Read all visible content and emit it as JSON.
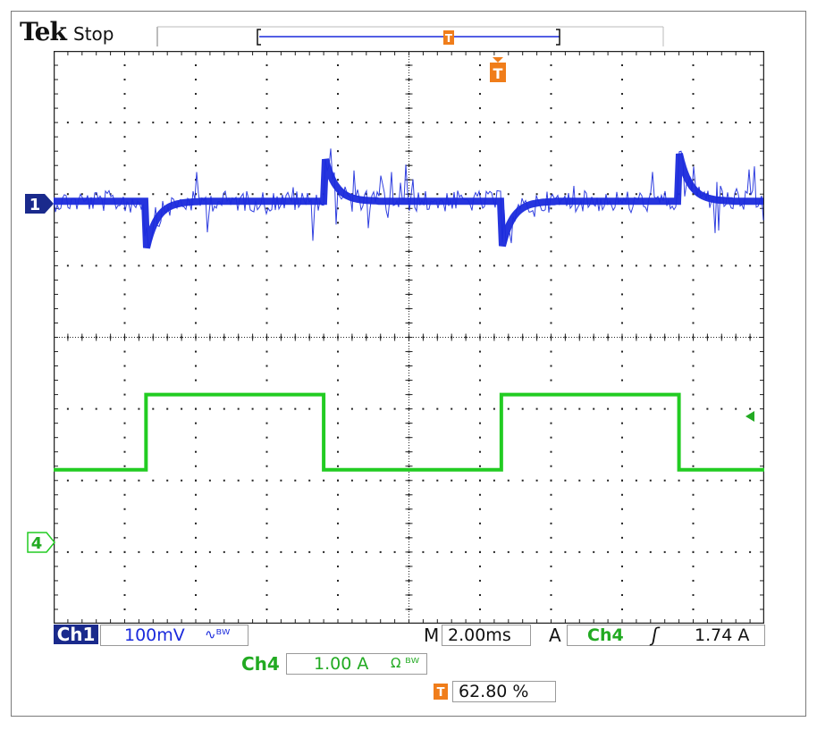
{
  "header": {
    "brand": "Tek",
    "acquisition_status": "Stop"
  },
  "channel1": {
    "label": "Ch1",
    "scale": "100mV",
    "coupling_symbol": "∿ᴮᵂ",
    "marker": "1",
    "color": "#1a2adc"
  },
  "channel4": {
    "label": "Ch4",
    "scale": "1.00 A",
    "coupling_symbol": "Ω ᴮᵂ",
    "marker": "4",
    "color": "#22cc22",
    "waveform": {
      "low_level_div": -1.85,
      "high_level_div": -0.8,
      "rise_times_div": [
        1.3,
        6.3
      ],
      "fall_times_div": [
        3.8,
        8.8
      ]
    }
  },
  "timebase": {
    "label": "M",
    "value": "2.00ms"
  },
  "trigger": {
    "mode_label": "A",
    "source": "Ch4",
    "slope_symbol": "ʃ",
    "level": "1.74 A",
    "position_percent": "62.80 %",
    "position_marker": "T"
  },
  "colors": {
    "grid": "#222222",
    "frame": "#7a7a7a",
    "ch1_tag_bg": "#1a2a8c",
    "trigger_orange": "#f07d1a"
  }
}
